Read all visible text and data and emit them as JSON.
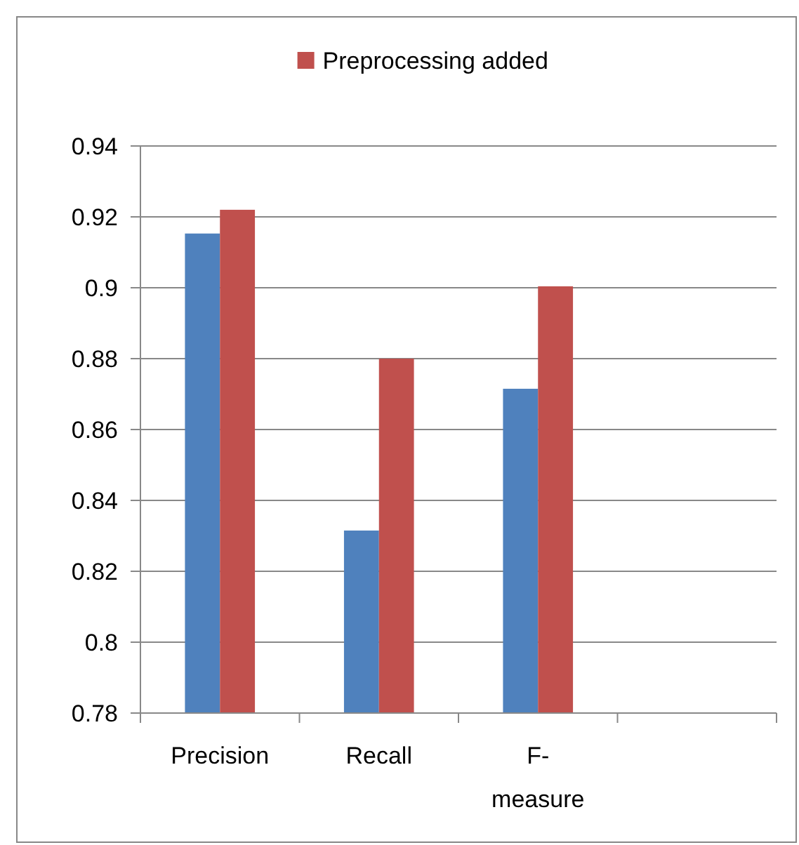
{
  "chart_data": {
    "type": "bar",
    "categories": [
      "Precision",
      "Recall",
      "F-measure",
      null
    ],
    "series": [
      {
        "color": "#4f81bd",
        "values": [
          0.9153,
          0.8315,
          0.8715,
          null
        ]
      },
      {
        "name": "Preprocessing added",
        "color": "#c0504d",
        "values": [
          0.922,
          0.88,
          0.9004,
          null
        ]
      }
    ],
    "ylim": [
      0.78,
      0.94
    ],
    "yticks": [
      0.78,
      0.8,
      0.82,
      0.84,
      0.86,
      0.88,
      0.9,
      0.92,
      0.94
    ],
    "grid": "y",
    "legend": "top"
  }
}
